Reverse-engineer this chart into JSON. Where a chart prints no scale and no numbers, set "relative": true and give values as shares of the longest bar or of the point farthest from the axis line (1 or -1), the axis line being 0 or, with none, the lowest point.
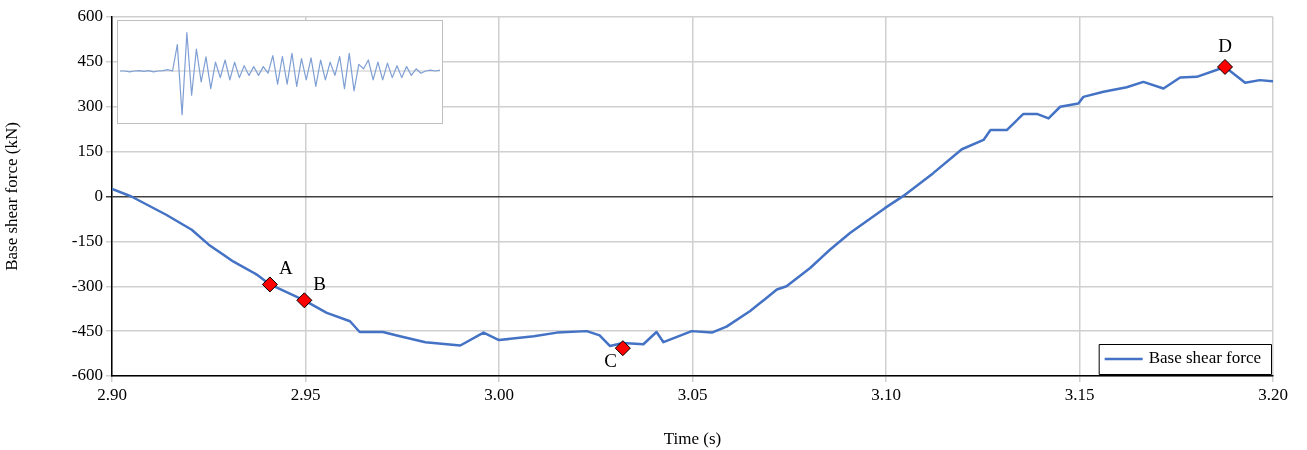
{
  "chart_data": [
    {
      "type": "line",
      "xlabel": "Time (s)",
      "ylabel": "Base shear force (kN)",
      "xlim": [
        2.9,
        3.2
      ],
      "xticks": [
        {
          "value": 2.9,
          "label": "2.90"
        },
        {
          "value": 2.95,
          "label": "2.95"
        },
        {
          "value": 3.0,
          "label": "3.00"
        },
        {
          "value": 3.05,
          "label": "3.05"
        },
        {
          "value": 3.1,
          "label": "3.10"
        },
        {
          "value": 3.15,
          "label": "3.15"
        },
        {
          "value": 3.2,
          "label": "3.20"
        }
      ],
      "ylim": [
        -600,
        600
      ],
      "yticks": [
        -600,
        -450,
        -300,
        -150,
        0,
        150,
        300,
        450,
        600
      ],
      "grid": true,
      "legend": "bottom right",
      "line_style": "solid",
      "series": [
        {
          "name": "Base shear force",
          "color": "#4472c4",
          "marker": "none",
          "x": [
            2.9,
            2.905,
            2.914,
            2.9206,
            2.925,
            2.9313,
            2.9374,
            2.9408,
            2.9497,
            2.9555,
            2.9615,
            2.964,
            2.97,
            2.9744,
            2.981,
            2.99,
            2.996,
            3.0,
            3.009,
            3.015,
            3.0227,
            3.026,
            3.0287,
            3.032,
            3.0373,
            3.0407,
            3.0425,
            3.0498,
            3.055,
            3.0588,
            3.0649,
            3.0718,
            3.0743,
            3.0804,
            3.0855,
            3.0907,
            3.0997,
            3.1045,
            3.1122,
            3.1196,
            3.1252,
            3.127,
            3.1312,
            3.1355,
            3.139,
            3.142,
            3.145,
            3.1497,
            3.151,
            3.1562,
            3.1622,
            3.1665,
            3.1717,
            3.176,
            3.1803,
            3.1876,
            3.1928,
            3.1966,
            3.2
          ],
          "values": [
            25,
            0,
            -61,
            -111,
            -161,
            -217,
            -261,
            -294,
            -347,
            -389,
            -417,
            -453,
            -453,
            -467,
            -487,
            -498,
            -455,
            -480,
            -467,
            -455,
            -450,
            -464,
            -500,
            -490,
            -494,
            -453,
            -487,
            -450,
            -455,
            -435,
            -383,
            -311,
            -300,
            -239,
            -178,
            -122,
            -39,
            2,
            78,
            158,
            189,
            222,
            222,
            276,
            276,
            261,
            300,
            311,
            333,
            350,
            365,
            383,
            361,
            398,
            400,
            433,
            380,
            389,
            385
          ]
        },
        {
          "type": "scatter",
          "color": "#ff0000",
          "marker": "diamond",
          "x": [
            2.9408,
            2.9497,
            3.032,
            3.1876
          ],
          "values": [
            -294,
            -347,
            -507,
            433
          ]
        }
      ],
      "annotations": [
        {
          "text": "A",
          "x": 2.9408,
          "y": -294
        },
        {
          "text": "B",
          "x": 2.9497,
          "y": -347
        },
        {
          "text": "C",
          "x": 3.032,
          "y": -507
        },
        {
          "text": "D",
          "x": 3.1876,
          "y": 433
        }
      ]
    },
    {
      "type": "line",
      "relative": true,
      "categories": [
        null,
        null,
        null,
        null,
        null,
        null,
        null,
        null,
        null,
        null,
        null,
        null,
        null,
        null,
        null,
        null,
        null,
        null,
        null,
        null,
        null,
        null,
        null,
        null,
        null,
        null,
        null,
        null,
        null,
        null,
        null,
        null,
        null,
        null,
        null,
        null,
        null,
        null,
        null,
        null,
        null,
        null,
        null,
        null,
        null,
        null,
        null,
        null,
        null,
        null,
        null,
        null,
        null,
        null,
        null,
        null,
        null,
        null,
        null,
        null,
        null,
        null,
        null,
        null,
        null,
        null,
        null,
        null
      ],
      "series": [
        {
          "color": "#7f9fd4",
          "values": [
            0,
            0,
            -0.02,
            0,
            0.01,
            -0.01,
            0.01,
            -0.02,
            0,
            0.01,
            0.03,
            0,
            0.6,
            -1,
            0.87,
            -0.55,
            0.5,
            -0.25,
            0.32,
            -0.4,
            0.2,
            -0.15,
            0.25,
            -0.2,
            0.2,
            -0.15,
            0.12,
            -0.1,
            0.1,
            -0.1,
            0.1,
            -0.05,
            0.35,
            -0.3,
            0.33,
            -0.3,
            0.4,
            -0.35,
            0.28,
            -0.2,
            0.3,
            -0.35,
            0.25,
            -0.2,
            0.2,
            -0.1,
            0.33,
            -0.4,
            0.4,
            -0.45,
            0.15,
            0.05,
            0.25,
            -0.2,
            0.2,
            -0.2,
            0.18,
            -0.15,
            0.12,
            -0.15,
            0.1,
            -0.1,
            0.05,
            -0.05,
            0,
            0.02,
            0,
            0.02
          ]
        }
      ]
    }
  ]
}
